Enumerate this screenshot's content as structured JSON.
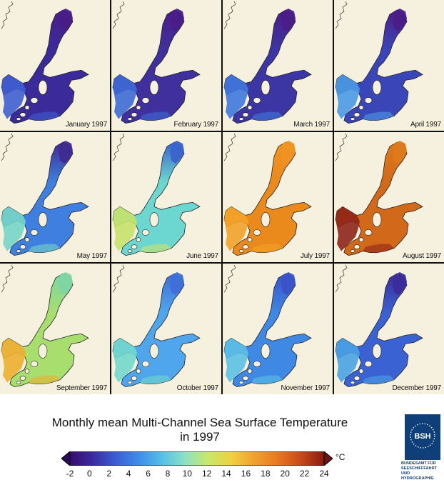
{
  "panels": [
    {
      "label": "January 1997",
      "deep": "#3b2a9a",
      "shallow": "#3f5fd2",
      "north": "#4a1e88"
    },
    {
      "label": "February 1997",
      "deep": "#40309e",
      "shallow": "#3d6ad6",
      "north": "#4a1e88"
    },
    {
      "label": "March 1997",
      "deep": "#3c36a4",
      "shallow": "#3f78dc",
      "north": "#4a1e88"
    },
    {
      "label": "April 1997",
      "deep": "#3a46b8",
      "shallow": "#4a9ae4",
      "north": "#4a1e88"
    },
    {
      "label": "May 1997",
      "deep": "#3e7fe0",
      "shallow": "#76d6c6",
      "north": "#3f2a90"
    },
    {
      "label": "June 1997",
      "deep": "#6cd6d0",
      "shallow": "#c8e26a",
      "north": "#3a64cc"
    },
    {
      "label": "July 1997",
      "deep": "#eb8a1c",
      "shallow": "#f3a22a",
      "north": "#ef9424"
    },
    {
      "label": "August 1997",
      "deep": "#d2691a",
      "shallow": "#8f2318",
      "north": "#dd7a1c"
    },
    {
      "label": "September 1997",
      "deep": "#a8de6e",
      "shallow": "#eeae30",
      "north": "#7ed6a2"
    },
    {
      "label": "October 1997",
      "deep": "#4fa6ec",
      "shallow": "#72d8cc",
      "north": "#3f6fd8"
    },
    {
      "label": "November 1997",
      "deep": "#3f88e4",
      "shallow": "#5cc0e4",
      "north": "#3a52c8"
    },
    {
      "label": "December 1997",
      "deep": "#3b62d2",
      "shallow": "#4aa2e4",
      "north": "#3b2c9a"
    }
  ],
  "title": {
    "line1": "Monthly mean Multi-Channel Sea Surface Temperature",
    "line2": "in 1997"
  },
  "colorbar": {
    "unit": "°C",
    "min": -2,
    "max": 24,
    "ticks": [
      "-2",
      "0",
      "2",
      "4",
      "6",
      "8",
      "10",
      "12",
      "14",
      "16",
      "18",
      "20",
      "22",
      "24"
    ],
    "tick_values": [
      -2,
      0,
      2,
      4,
      6,
      8,
      10,
      12,
      14,
      16,
      18,
      20,
      22,
      24
    ],
    "stops": [
      "#3a0a6e",
      "#3a2ca0",
      "#3a5fd6",
      "#3e8ee8",
      "#56c0e8",
      "#8ee2c4",
      "#c8e866",
      "#f0d040",
      "#f0a030",
      "#e87820",
      "#c84a18",
      "#8a1a10"
    ]
  },
  "logo": {
    "mark": "BSH",
    "lines": [
      "BUNDESAMT FÜR",
      "SEESCHIFFFAHRT",
      "UND",
      "HYDROGRAPHIE"
    ]
  }
}
